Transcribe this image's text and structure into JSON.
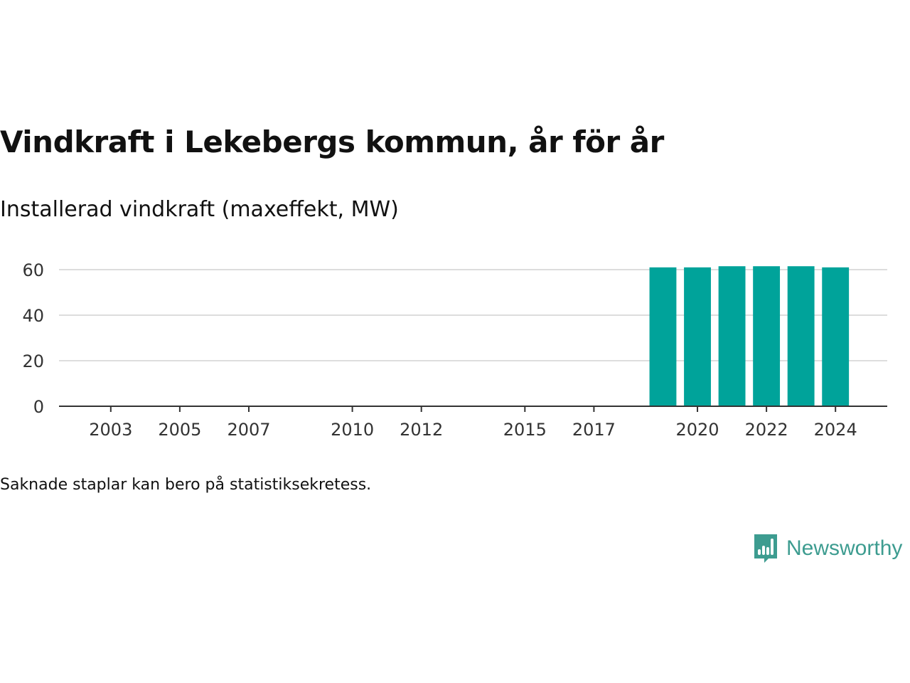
{
  "title": "Vindkraft i Lekebergs kommun, år för år",
  "subtitle": "Installerad vindkraft (maxeffekt, MW)",
  "note": "Saknade staplar kan bero på statistiksekretess.",
  "brand": {
    "name": "Newsworthy",
    "logo_icon": "bar-chart-speech-bubble-icon"
  },
  "colors": {
    "bar": "#00a39a",
    "grid": "#dddddd",
    "axis": "#333333",
    "brand": "#3d9c90"
  },
  "chart_data": {
    "type": "bar",
    "title": "Vindkraft i Lekebergs kommun, år för år",
    "subtitle": "Installerad vindkraft (maxeffekt, MW)",
    "x": [
      2019,
      2020,
      2021,
      2022,
      2023,
      2024
    ],
    "values": [
      61,
      61,
      61.5,
      61.5,
      61.5,
      61
    ],
    "xlim": [
      2001.5,
      2025.5
    ],
    "xticks": [
      "2003",
      "2005",
      "2007",
      "2010",
      "2012",
      "2015",
      "2017",
      "2020",
      "2022",
      "2024"
    ],
    "ylim": [
      0,
      60
    ],
    "yticks": [
      "0",
      "20",
      "40",
      "60"
    ],
    "grid": true,
    "legend": "none"
  }
}
